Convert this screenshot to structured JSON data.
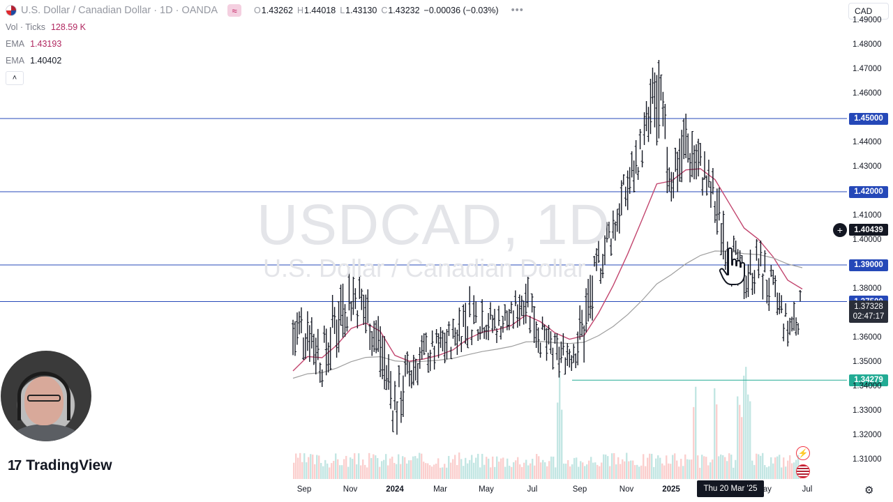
{
  "header": {
    "symbol_title": "U.S. Dollar / Canadian Dollar · 1D · OANDA",
    "ohlc": [
      {
        "label": "O",
        "value": "1.43262"
      },
      {
        "label": "H",
        "value": "1.44018"
      },
      {
        "label": "L",
        "value": "1.43130"
      },
      {
        "label": "C",
        "value": "1.43232"
      }
    ],
    "change": "−0.00036 (−0.03%)",
    "more_menu": "•••",
    "wave_icon": "≈"
  },
  "indicators": {
    "volume": {
      "label": "Vol · Ticks",
      "value": "128.59 K"
    },
    "ema_fast": {
      "label": "EMA",
      "value": "1.43193"
    },
    "ema_slow": {
      "label": "EMA",
      "value": "1.40402"
    },
    "collapse": "˄"
  },
  "currency_button": "CAD",
  "watermark": {
    "main": "USDCAD, 1D",
    "sub": "U.S. Dollar / Canadian Dollar"
  },
  "price_axis": {
    "ticks": [
      "1.49000",
      "1.48000",
      "1.47000",
      "1.46000",
      "1.44000",
      "1.43000",
      "1.41000",
      "1.40000",
      "1.38000",
      "1.36000",
      "1.35000",
      "1.34000",
      "1.33000",
      "1.32000",
      "1.31000"
    ],
    "levels": [
      {
        "value": "1.45000",
        "color": "#2548b8"
      },
      {
        "value": "1.42000",
        "color": "#2548b8"
      },
      {
        "value": "1.39000",
        "color": "#2548b8"
      },
      {
        "value": "1.37500",
        "color": "#2548b8"
      },
      {
        "value": "1.34279",
        "color": "#22ab94"
      }
    ],
    "crosshair_price": "1.40439",
    "last_price": "1.37328",
    "countdown": "02:47:17",
    "add_icon": "plus-circle-icon"
  },
  "time_axis": {
    "ticks": [
      {
        "label": "Sep",
        "bold": false
      },
      {
        "label": "Nov",
        "bold": false
      },
      {
        "label": "2024",
        "bold": true
      },
      {
        "label": "Mar",
        "bold": false
      },
      {
        "label": "May",
        "bold": false
      },
      {
        "label": "Jul",
        "bold": false
      },
      {
        "label": "Sep",
        "bold": false
      },
      {
        "label": "Nov",
        "bold": false
      },
      {
        "label": "2025",
        "bold": true
      },
      {
        "label": "May",
        "bold": false
      },
      {
        "label": "Jul",
        "bold": false
      }
    ],
    "crosshair_date": "Thu 20 Mar '25"
  },
  "brand": {
    "logo_text": "TradingView",
    "logo_mark": "17"
  },
  "icons": {
    "settings": "gear-icon",
    "events_bolt": "⚡",
    "cursor": "hand-cursor-icon"
  },
  "colors": {
    "up_volume": "#26a69a",
    "down_volume": "#ef5350",
    "ema_fast": "#c2456e",
    "ema_slow": "#9e9e9e",
    "price_line": "#2548b8",
    "support_line": "#22ab94"
  },
  "chart_data": {
    "type": "candlestick",
    "title": "USDCAD, 1D",
    "subtitle": "U.S. Dollar / Canadian Dollar",
    "ylim": [
      1.305,
      1.495
    ],
    "x_labels": [
      "Sep",
      "Nov",
      "2024",
      "Mar",
      "May",
      "Jul",
      "Sep",
      "Nov",
      "2025",
      "Mar",
      "May",
      "Jul"
    ],
    "series": [
      {
        "name": "USDCAD",
        "points": [
          {
            "t": 0,
            "low": 1.349,
            "high": 1.372
          },
          {
            "t": 1,
            "low": 1.352,
            "high": 1.378
          },
          {
            "t": 2,
            "low": 1.34,
            "high": 1.362
          },
          {
            "t": 3,
            "low": 1.352,
            "high": 1.384
          },
          {
            "t": 4,
            "low": 1.367,
            "high": 1.39
          },
          {
            "t": 5,
            "low": 1.36,
            "high": 1.382
          },
          {
            "t": 6,
            "low": 1.343,
            "high": 1.368
          },
          {
            "t": 7,
            "low": 1.318,
            "high": 1.346
          },
          {
            "t": 8,
            "low": 1.335,
            "high": 1.356
          },
          {
            "t": 9,
            "low": 1.345,
            "high": 1.362
          },
          {
            "t": 10,
            "low": 1.348,
            "high": 1.364
          },
          {
            "t": 11,
            "low": 1.352,
            "high": 1.368
          },
          {
            "t": 12,
            "low": 1.356,
            "high": 1.382
          },
          {
            "t": 13,
            "low": 1.36,
            "high": 1.377
          },
          {
            "t": 14,
            "low": 1.358,
            "high": 1.373
          },
          {
            "t": 15,
            "low": 1.363,
            "high": 1.375
          },
          {
            "t": 16,
            "low": 1.366,
            "high": 1.391
          },
          {
            "t": 17,
            "low": 1.352,
            "high": 1.37
          },
          {
            "t": 18,
            "low": 1.343,
            "high": 1.362
          },
          {
            "t": 19,
            "low": 1.346,
            "high": 1.362
          },
          {
            "t": 20,
            "low": 1.35,
            "high": 1.378
          },
          {
            "t": 21,
            "low": 1.38,
            "high": 1.4
          },
          {
            "t": 22,
            "low": 1.396,
            "high": 1.415
          },
          {
            "t": 23,
            "low": 1.412,
            "high": 1.432
          },
          {
            "t": 24,
            "low": 1.43,
            "high": 1.448
          },
          {
            "t": 25,
            "low": 1.428,
            "high": 1.48
          },
          {
            "t": 26,
            "low": 1.416,
            "high": 1.438
          },
          {
            "t": 27,
            "low": 1.425,
            "high": 1.452
          },
          {
            "t": 28,
            "low": 1.421,
            "high": 1.44
          },
          {
            "t": 29,
            "low": 1.403,
            "high": 1.428
          },
          {
            "t": 30,
            "low": 1.382,
            "high": 1.406
          },
          {
            "t": 31,
            "low": 1.376,
            "high": 1.392
          },
          {
            "t": 32,
            "low": 1.379,
            "high": 1.402
          },
          {
            "t": 33,
            "low": 1.368,
            "high": 1.388
          },
          {
            "t": 34,
            "low": 1.355,
            "high": 1.372
          },
          {
            "t": 35,
            "low": 1.364,
            "high": 1.381
          }
        ]
      }
    ]
  }
}
